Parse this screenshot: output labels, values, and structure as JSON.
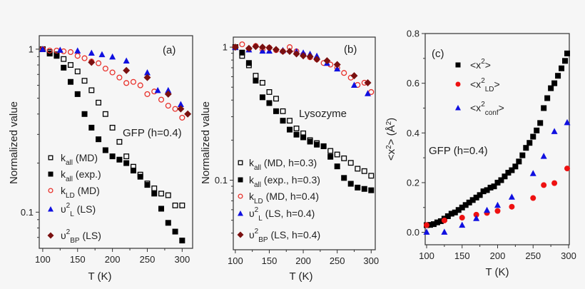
{
  "chart_data": [
    {
      "type": "scatter",
      "panel_label": "(a)",
      "annotation": "GFP (h=0.4)",
      "xlabel": "T (K)",
      "ylabel": "Normalized value",
      "xlim": [
        95,
        315
      ],
      "ylim": [
        0.06,
        1.21
      ],
      "yscale": "log",
      "xticks": [
        100,
        150,
        200,
        250,
        300
      ],
      "yticks": [
        {
          "v": 1,
          "label": "1"
        },
        {
          "v": 0.1,
          "label": "0.1"
        }
      ],
      "legend_placement": "bottom-left",
      "series": [
        {
          "name": {
            "base": "k",
            "sub": "all",
            "sup": "",
            "rest": " (MD)"
          },
          "marker": "square-open",
          "color": "#000000",
          "x": [
            100,
            110,
            120,
            130,
            140,
            150,
            160,
            170,
            180,
            190,
            200,
            210,
            220,
            230,
            240,
            250,
            260,
            270,
            280,
            290,
            300
          ],
          "y": [
            1.0,
            0.96,
            0.93,
            0.87,
            0.8,
            0.73,
            0.64,
            0.56,
            0.47,
            0.4,
            0.33,
            0.27,
            0.22,
            0.19,
            0.17,
            0.15,
            0.14,
            0.13,
            0.127,
            0.11,
            0.11
          ]
        },
        {
          "name": {
            "base": "k",
            "sub": "all",
            "sup": "",
            "rest": " (exp.)"
          },
          "marker": "square",
          "color": "#000000",
          "x": [
            100,
            110,
            120,
            130,
            140,
            150,
            160,
            170,
            180,
            190,
            200,
            210,
            220,
            230,
            240,
            250,
            260,
            270,
            280,
            290,
            300
          ],
          "y": [
            1.0,
            0.94,
            0.91,
            0.77,
            0.63,
            0.53,
            0.4,
            0.33,
            0.28,
            0.24,
            0.22,
            0.21,
            0.2,
            0.18,
            0.165,
            0.147,
            0.13,
            0.105,
            0.086,
            0.076,
            0.067
          ]
        },
        {
          "name": {
            "base": "k",
            "sub": "LD",
            "sup": "",
            "rest": " (MD)"
          },
          "marker": "circle-open",
          "color": "#e8302a",
          "x": [
            100,
            110,
            120,
            130,
            140,
            150,
            160,
            170,
            180,
            190,
            200,
            210,
            220,
            230,
            240,
            250,
            260,
            270,
            280,
            290,
            300
          ],
          "y": [
            1.0,
            0.98,
            0.98,
            0.97,
            0.96,
            0.91,
            0.88,
            0.84,
            0.82,
            0.76,
            0.72,
            0.67,
            0.62,
            0.63,
            0.6,
            0.53,
            0.55,
            0.49,
            0.45,
            0.43,
            0.38
          ]
        },
        {
          "name": {
            "base": "υ",
            "sub": "L",
            "sup": "2",
            "rest": " (LS)"
          },
          "marker": "triangle",
          "color": "#1010e0",
          "x": [
            100,
            125,
            150,
            170,
            185,
            200,
            220,
            250,
            265,
            280,
            298
          ],
          "y": [
            1.0,
            0.99,
            0.98,
            0.95,
            0.93,
            0.9,
            0.85,
            0.72,
            0.56,
            0.56,
            0.46
          ]
        },
        {
          "name": {
            "base": "υ",
            "sub": "BP",
            "sup": "2",
            "rest": " (LS)"
          },
          "marker": "diamond",
          "color": "#7a1010",
          "x": [
            170,
            220,
            250,
            280,
            298,
            308
          ],
          "y": [
            0.83,
            0.74,
            0.67,
            0.53,
            0.43,
            0.4
          ]
        }
      ]
    },
    {
      "type": "scatter",
      "panel_label": "(b)",
      "annotation": "Lysozyme",
      "xlabel": "T (K)",
      "ylabel": "Normalized value",
      "xlim": [
        97,
        306
      ],
      "ylim": [
        0.03,
        1.19
      ],
      "yscale": "log",
      "xticks": [
        100,
        150,
        200,
        250,
        300
      ],
      "yticks": [
        {
          "v": 1,
          "label": "1"
        },
        {
          "v": 0.1,
          "label": "0.1"
        }
      ],
      "legend_placement": "bottom-left",
      "series": [
        {
          "name": {
            "base": "k",
            "sub": "all",
            "sup": "",
            "rest": " (MD, h=0.3)"
          },
          "marker": "square-open",
          "color": "#000000",
          "x": [
            100,
            110,
            120,
            130,
            140,
            150,
            160,
            170,
            180,
            190,
            200,
            210,
            220,
            230,
            240,
            250,
            260,
            270,
            280,
            290,
            300
          ],
          "y": [
            1.0,
            0.86,
            0.73,
            0.61,
            0.54,
            0.46,
            0.41,
            0.33,
            0.28,
            0.245,
            0.225,
            0.2,
            0.19,
            0.18,
            0.166,
            0.156,
            0.146,
            0.135,
            0.122,
            0.117,
            0.108
          ]
        },
        {
          "name": {
            "base": "k",
            "sub": "all",
            "sup": "",
            "rest": " (exp., h=0.3)"
          },
          "marker": "square",
          "color": "#000000",
          "x": [
            100,
            110,
            120,
            130,
            140,
            150,
            160,
            170,
            180,
            190,
            200,
            210,
            220,
            230,
            240,
            250,
            260,
            270,
            280,
            290,
            300
          ],
          "y": [
            1.0,
            0.91,
            0.76,
            0.56,
            0.42,
            0.38,
            0.33,
            0.28,
            0.24,
            0.22,
            0.21,
            0.195,
            0.185,
            0.18,
            0.15,
            0.127,
            0.104,
            0.094,
            0.088,
            0.086,
            0.084
          ]
        },
        {
          "name": {
            "base": "k",
            "sub": "LD",
            "sup": "",
            "rest": " (MD, h=0.4)"
          },
          "marker": "circle-open",
          "color": "#e8302a",
          "x": [
            100,
            110,
            120,
            130,
            140,
            150,
            160,
            170,
            180,
            190,
            200,
            210,
            220,
            230,
            240,
            250,
            260,
            270,
            280,
            290,
            300
          ],
          "y": [
            1.0,
            1.05,
            0.97,
            1.02,
            0.96,
            0.99,
            0.95,
            0.93,
            1.0,
            0.93,
            0.88,
            0.84,
            0.81,
            0.76,
            0.74,
            0.7,
            0.64,
            0.59,
            0.52,
            0.54,
            0.46
          ]
        },
        {
          "name": {
            "base": "υ",
            "sub": "L",
            "sup": "2",
            "rest": " (LS, h=0.4)"
          },
          "marker": "triangle",
          "color": "#1010e0",
          "x": [
            100,
            120,
            140,
            150,
            170,
            190,
            200,
            210,
            220,
            235,
            250,
            275,
            295
          ],
          "y": [
            1.0,
            0.96,
            0.94,
            0.94,
            0.95,
            0.93,
            0.91,
            0.89,
            0.86,
            0.76,
            0.69,
            0.52,
            0.45
          ]
        },
        {
          "name": {
            "base": "υ",
            "sub": "BP",
            "sup": "2",
            "rest": " (LS, h=0.4)"
          },
          "marker": "diamond",
          "color": "#7a1010",
          "x": [
            100,
            120,
            130,
            140,
            150,
            160,
            170,
            180,
            190,
            200,
            210,
            220,
            235,
            250,
            275,
            295
          ],
          "y": [
            1.0,
            0.98,
            1.01,
            1.0,
            0.99,
            0.96,
            0.93,
            0.93,
            0.89,
            0.86,
            0.85,
            0.81,
            0.79,
            0.74,
            0.61,
            0.54
          ]
        }
      ]
    },
    {
      "type": "scatter",
      "panel_label": "(c)",
      "annotation": "GFP (h=0.4)",
      "xlabel": "T (K)",
      "ylabel": {
        "base": "<x",
        "sup": "2",
        "rest": "> (Å",
        "sup2": "2",
        "end": ")"
      },
      "xlim": [
        98,
        301
      ],
      "ylim": [
        -0.05,
        0.8
      ],
      "yscale": "linear",
      "xticks": [
        100,
        150,
        200,
        250,
        300
      ],
      "yticks": [
        {
          "v": 0,
          "label": "0.0"
        },
        {
          "v": 0.2,
          "label": "0.2"
        },
        {
          "v": 0.4,
          "label": "0.4"
        },
        {
          "v": 0.6,
          "label": "0.6"
        },
        {
          "v": 0.8,
          "label": "0.8"
        }
      ],
      "legend_placement": "top-left",
      "series": [
        {
          "name": {
            "base": "<x",
            "sup": "2",
            "rest": ">",
            "sub": ""
          },
          "marker": "square",
          "color": "#000000",
          "x": [
            100,
            105,
            110,
            115,
            120,
            125,
            130,
            135,
            140,
            145,
            150,
            155,
            160,
            165,
            170,
            175,
            180,
            185,
            190,
            195,
            200,
            205,
            210,
            215,
            220,
            225,
            230,
            235,
            240,
            245,
            250,
            255,
            260,
            265,
            270,
            275,
            280,
            285,
            290,
            295,
            298
          ],
          "y": [
            0.029,
            0.03,
            0.033,
            0.04,
            0.045,
            0.055,
            0.065,
            0.075,
            0.08,
            0.09,
            0.1,
            0.11,
            0.12,
            0.13,
            0.14,
            0.15,
            0.165,
            0.17,
            0.18,
            0.185,
            0.2,
            0.21,
            0.225,
            0.24,
            0.25,
            0.265,
            0.285,
            0.31,
            0.34,
            0.36,
            0.385,
            0.41,
            0.44,
            0.5,
            0.54,
            0.58,
            0.6,
            0.63,
            0.66,
            0.69,
            0.72
          ]
        },
        {
          "name": {
            "base": "<x",
            "sup": "2",
            "rest": ">",
            "sub": "LD"
          },
          "marker": "circle",
          "color": "#ee1111",
          "x": [
            100,
            125,
            150,
            170,
            185,
            200,
            220,
            250,
            265,
            280,
            298
          ],
          "y": [
            0.029,
            0.048,
            0.059,
            0.071,
            0.078,
            0.086,
            0.103,
            0.138,
            0.19,
            0.198,
            0.257
          ]
        },
        {
          "name": {
            "base": "<x",
            "sup": "2",
            "rest": ">",
            "sub": "conf"
          },
          "marker": "triangle",
          "color": "#1010e0",
          "x": [
            100,
            125,
            150,
            170,
            185,
            200,
            220,
            250,
            265,
            280,
            298
          ],
          "y": [
            0.002,
            0.002,
            0.03,
            0.057,
            0.09,
            0.11,
            0.143,
            0.238,
            0.307,
            0.407,
            0.443
          ]
        }
      ]
    }
  ]
}
